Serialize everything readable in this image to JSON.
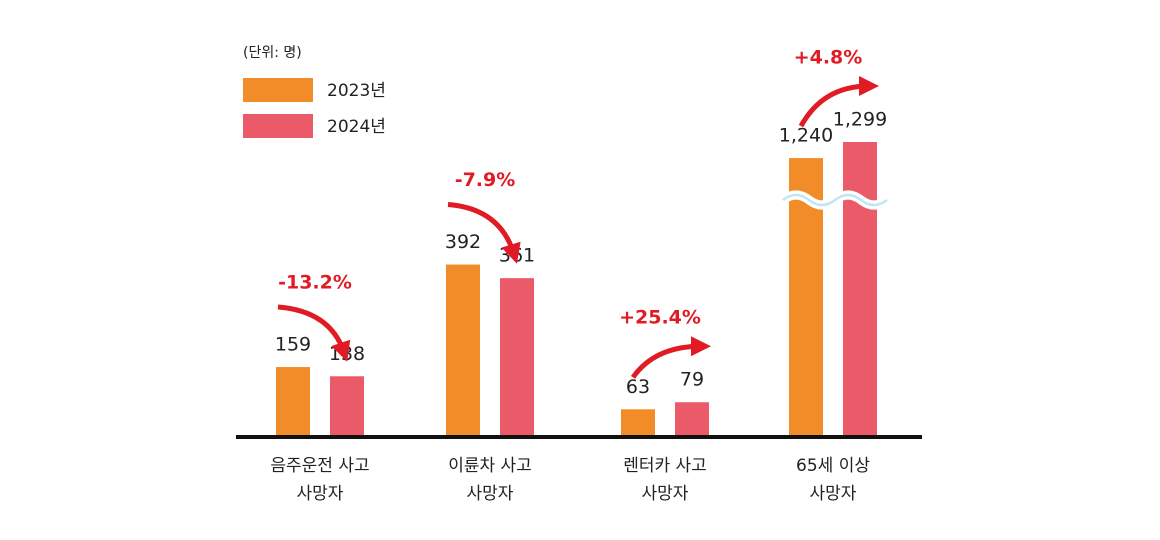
{
  "chart_data": {
    "type": "bar",
    "unit": "(단위: 명)",
    "categories": [
      "음주운전 사고\n사망자",
      "이륜차 사고\n사망자",
      "렌터카 사고\n사망자",
      "65세 이상\n사망자"
    ],
    "series": [
      {
        "name": "2023년",
        "color": "#f28c28",
        "values": [
          159,
          392,
          63,
          1240
        ],
        "value_labels": [
          "159",
          "392",
          "63",
          "1,240"
        ]
      },
      {
        "name": "2024년",
        "color": "#eb5a68",
        "values": [
          138,
          361,
          79,
          1299
        ],
        "value_labels": [
          "138",
          "361",
          "79",
          "1,299"
        ]
      }
    ],
    "annotations": [
      "-13.2%",
      "-7.9%",
      "+25.4%",
      "+4.8%"
    ],
    "ylim": [
      0,
      1300
    ],
    "axis_break": [
      450,
      1200
    ],
    "legend": "top-left"
  }
}
